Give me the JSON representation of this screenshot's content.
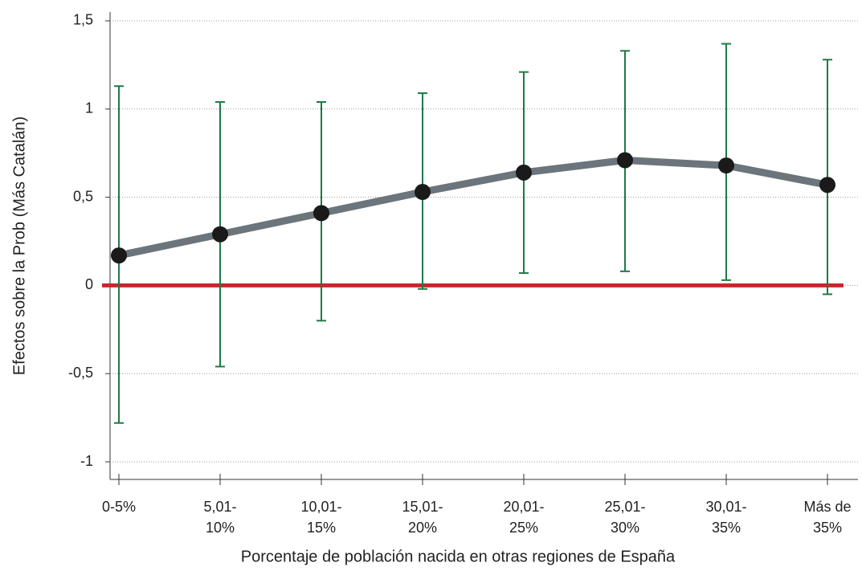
{
  "chart_data": {
    "type": "line",
    "x_label": "Porcentaje de población nacida en otras regiones de España",
    "y_label": "Efectos sobre la Prob (Más Catalán)",
    "categories": [
      "0-5%",
      "5,01-10%",
      "10,01-15%",
      "15,01-20%",
      "20,01-25%",
      "25,01-30%",
      "30,01-35%",
      "Más de 35%"
    ],
    "values": [
      0.17,
      0.29,
      0.41,
      0.53,
      0.64,
      0.71,
      0.68,
      0.57
    ],
    "lower": [
      -0.78,
      -0.46,
      -0.2,
      -0.02,
      0.07,
      0.08,
      0.03,
      -0.05
    ],
    "upper": [
      1.13,
      1.04,
      1.04,
      1.09,
      1.21,
      1.33,
      1.37,
      1.28
    ],
    "color": "#6b757b",
    "marker_color": "#1a1a1a",
    "error_color": "#1e7a45",
    "reference_line": {
      "value": 0,
      "color": "#c8262c"
    },
    "ylim": [
      -1.1,
      1.55
    ],
    "yticks": [
      -1,
      {
        "value": -0.5,
        "label": "-0,5"
      },
      0,
      {
        "value": 0.5,
        "label": "0,5"
      },
      1,
      {
        "value": 1.5,
        "label": "1,5"
      }
    ],
    "grid": true
  }
}
